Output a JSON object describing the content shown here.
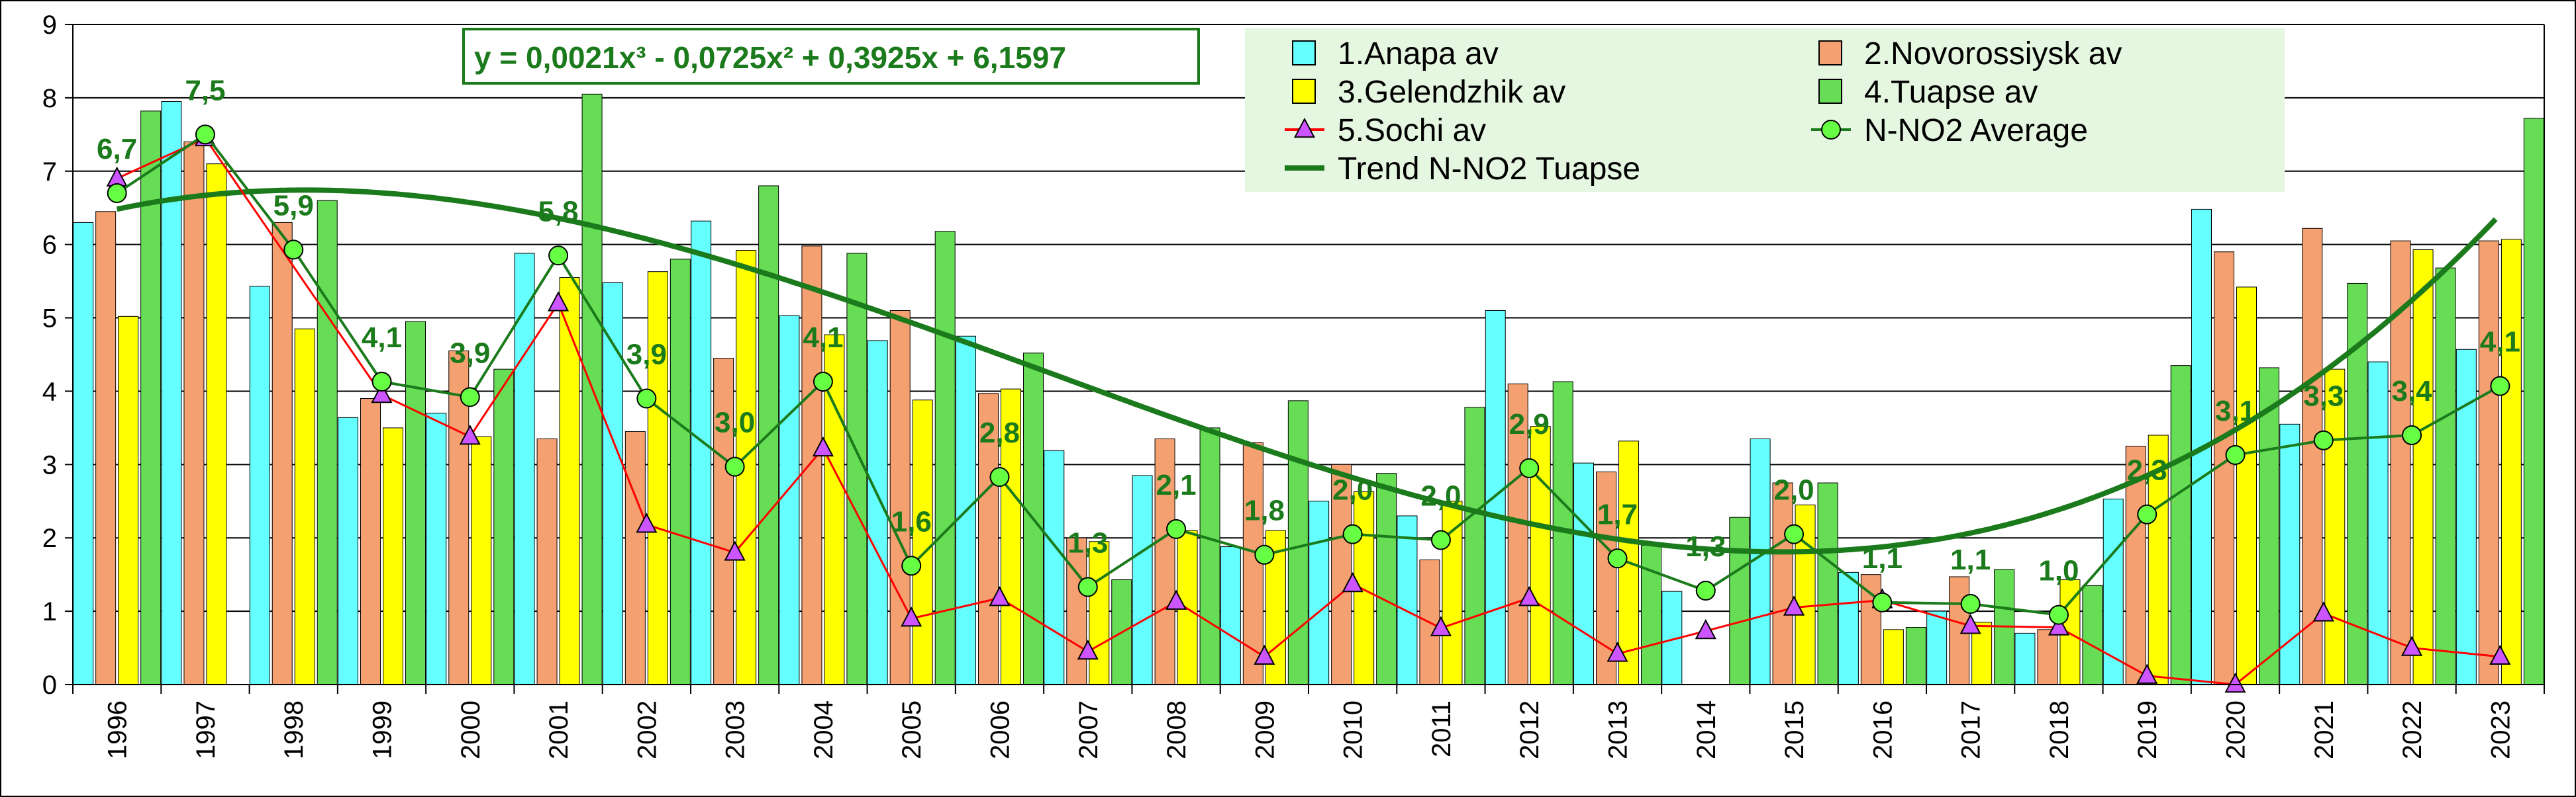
{
  "chart_data": {
    "type": "bar",
    "categories": [
      "1996",
      "1997",
      "1998",
      "1999",
      "2000",
      "2001",
      "2002",
      "2003",
      "2004",
      "2005",
      "2006",
      "2007",
      "2008",
      "2009",
      "2010",
      "2011",
      "2012",
      "2013",
      "2014",
      "2015",
      "2016",
      "2017",
      "2018",
      "2019",
      "2020",
      "2021",
      "2022",
      "2023"
    ],
    "ylim": [
      0,
      9
    ],
    "yticks": [
      "0",
      "1",
      "2",
      "3",
      "4",
      "5",
      "6",
      "7",
      "8",
      "9"
    ],
    "grid": true,
    "legend_position": "top-right",
    "series": [
      {
        "name": "1.Anapa av",
        "type": "bar",
        "color": "#66ffff",
        "values": [
          6.3,
          7.95,
          5.43,
          3.64,
          3.7,
          5.88,
          5.48,
          6.32,
          5.03,
          4.69,
          4.75,
          3.19,
          2.85,
          1.88,
          2.5,
          2.3,
          5.1,
          3.02,
          1.27,
          3.35,
          1.53,
          1.0,
          0.7,
          2.53,
          6.48,
          3.55,
          4.4,
          4.57
        ]
      },
      {
        "name": "2.Novorossiysk av",
        "type": "bar",
        "color": "#f4a070",
        "values": [
          6.45,
          7.4,
          6.3,
          3.9,
          4.55,
          3.35,
          3.45,
          4.45,
          5.98,
          5.1,
          3.97,
          2.0,
          3.35,
          3.3,
          3.0,
          1.7,
          4.1,
          2.9,
          0.0,
          2.75,
          1.5,
          1.47,
          0.75,
          3.25,
          5.9,
          6.22,
          6.05,
          6.05
        ]
      },
      {
        "name": "3.Gelendzhik av",
        "type": "bar",
        "color": "#ffff00",
        "values": [
          5.02,
          7.1,
          4.85,
          3.5,
          3.38,
          5.55,
          5.63,
          5.92,
          4.77,
          3.88,
          4.03,
          1.95,
          2.1,
          2.1,
          2.63,
          2.5,
          3.52,
          3.32,
          0.0,
          2.45,
          0.75,
          0.85,
          1.43,
          3.4,
          5.42,
          4.3,
          5.93,
          6.07
        ]
      },
      {
        "name": "4.Tuapse av",
        "type": "bar",
        "color": "#66dd55",
        "values": [
          7.82,
          0,
          6.6,
          4.95,
          4.3,
          8.05,
          5.8,
          6.8,
          5.88,
          6.18,
          4.52,
          1.43,
          3.5,
          3.87,
          2.88,
          3.78,
          4.13,
          1.9,
          2.28,
          2.75,
          0.78,
          1.57,
          1.35,
          4.35,
          4.32,
          5.47,
          5.68,
          7.72
        ]
      },
      {
        "name": "5.Sochi av",
        "type": "line",
        "color": "#ff0000",
        "marker": "triangle",
        "marker_color": "#cc55ff",
        "values": [
          6.9,
          7.45,
          null,
          3.95,
          3.38,
          5.2,
          2.18,
          1.8,
          3.22,
          0.9,
          1.18,
          0.45,
          1.13,
          0.38,
          1.37,
          0.77,
          1.18,
          0.42,
          0.73,
          1.05,
          1.15,
          0.8,
          0.78,
          0.12,
          0.0,
          0.97,
          0.5,
          0.38
        ]
      },
      {
        "name": "N-NO2 Average",
        "type": "line",
        "color": "#1b7a1b",
        "marker": "circle",
        "marker_color": "#66ff44",
        "values": [
          6.7,
          7.5,
          5.93,
          4.13,
          3.92,
          5.85,
          3.9,
          2.97,
          4.13,
          1.62,
          2.83,
          1.33,
          2.12,
          1.77,
          2.05,
          1.97,
          2.95,
          1.72,
          1.28,
          2.05,
          1.12,
          1.1,
          0.95,
          2.32,
          3.13,
          3.33,
          3.4,
          4.07
        ]
      },
      {
        "name": "Trend N-NO2 Tuapse",
        "type": "trend",
        "color": "#1b7a1b",
        "coefficients": [
          0.0021,
          -0.0725,
          0.3925,
          6.1597
        ]
      }
    ],
    "data_labels": [
      "6,7",
      "7,5",
      "5,9",
      "4,1",
      "3,9",
      "5,8",
      "3,9",
      "3,0",
      "4,1",
      "1,6",
      "2,8",
      "1,3",
      "2,1",
      "1,8",
      "2,0",
      "2,0",
      "2,9",
      "1,7",
      "1,3",
      "2,0",
      "1,1",
      "1,1",
      "1,0",
      "2,3",
      "3,1",
      "3,3",
      "3,4",
      "4,1"
    ],
    "equation": "y = 0,0021x³ - 0,0725x² + 0,3925x + 6,1597"
  }
}
